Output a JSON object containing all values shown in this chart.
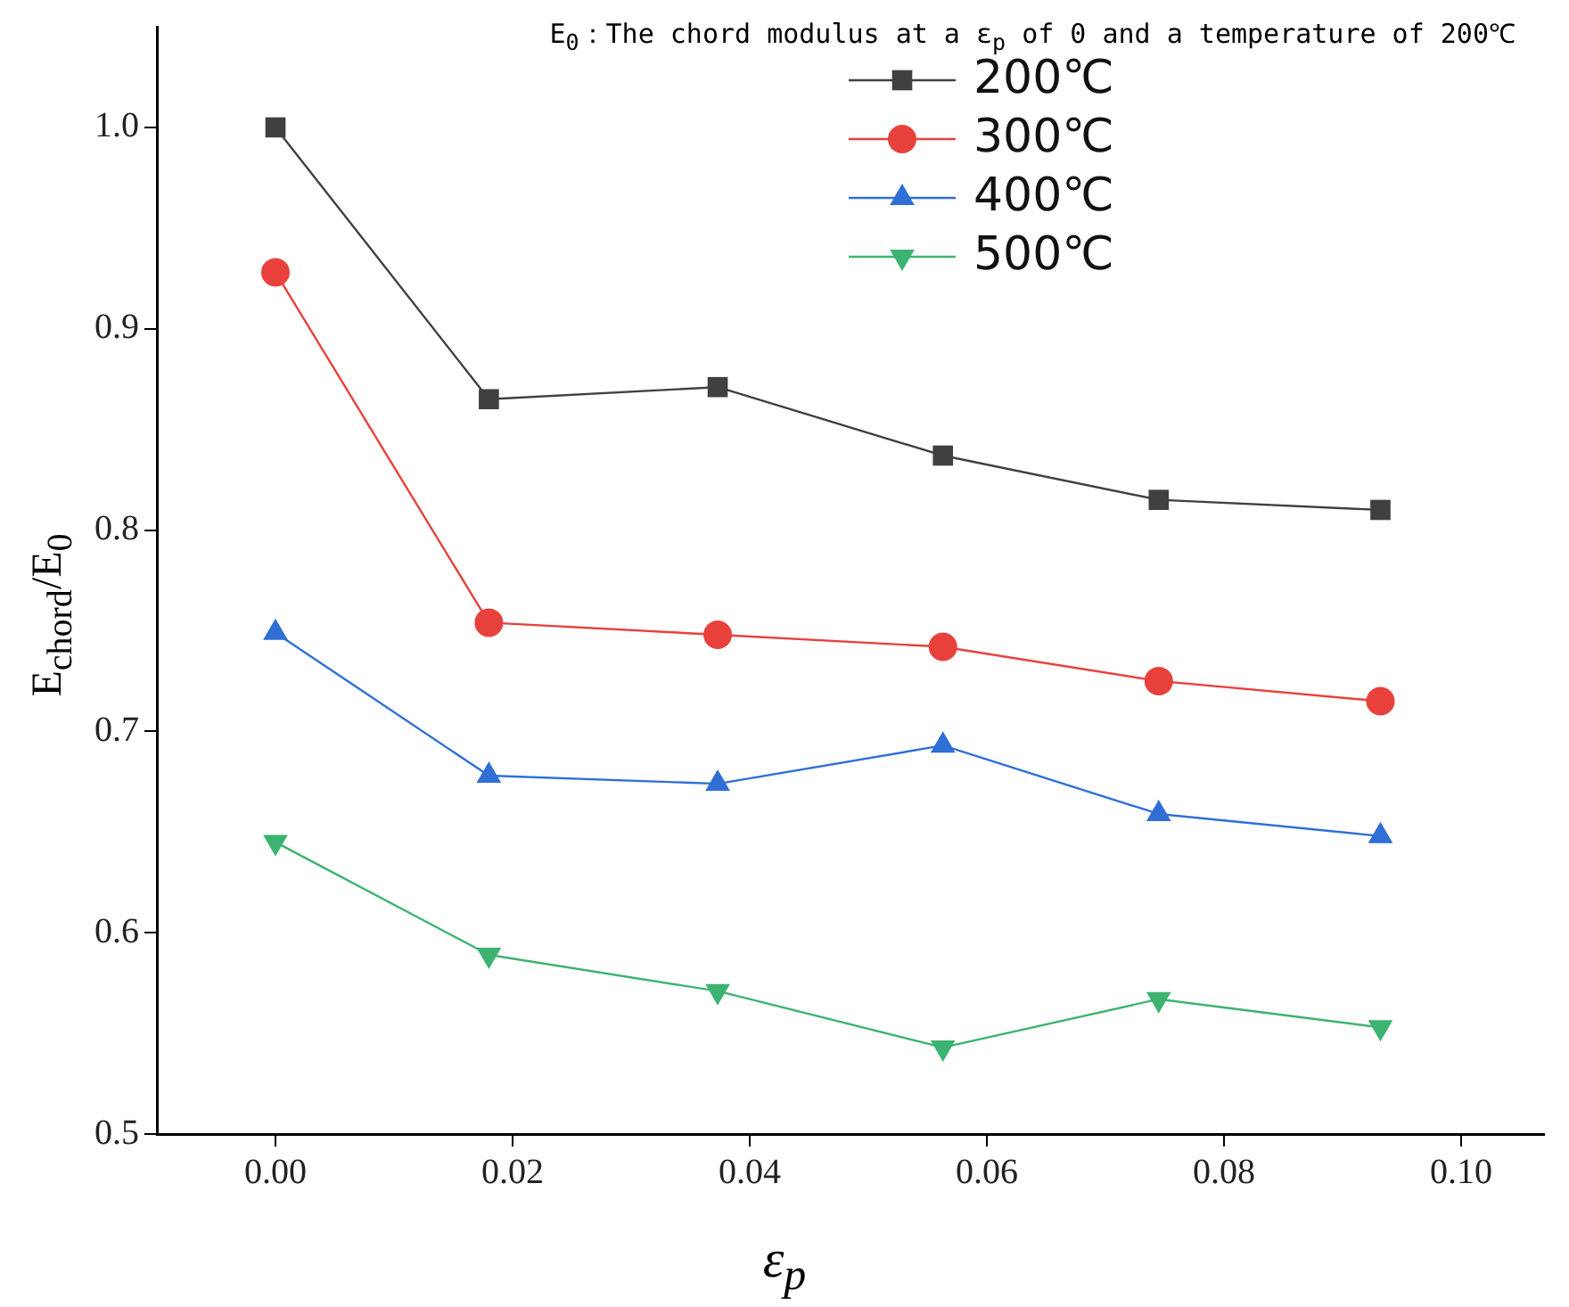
{
  "chart_data": {
    "type": "line",
    "xlabel": "ε$_{p}$",
    "ylabel": "E$_{chord}$/E$_{0}$",
    "annotations": [
      "E$_{0}$：The chord modulus at a ε$_{p}$ of 0 and a temperature of 200℃"
    ],
    "x": [
      0,
      0.018,
      0.0373,
      0.0563,
      0.0745,
      0.0932
    ],
    "series": [
      {
        "name": "200℃",
        "color": "#404040",
        "marker": "square",
        "values": [
          1.0,
          0.865,
          0.871,
          0.837,
          0.815,
          0.81
        ]
      },
      {
        "name": "300℃",
        "color": "#e8413c",
        "marker": "circle",
        "values": [
          0.928,
          0.754,
          0.748,
          0.742,
          0.725,
          0.715
        ]
      },
      {
        "name": "400℃",
        "color": "#2f6fd6",
        "marker": "triangle",
        "values": [
          0.749,
          0.678,
          0.674,
          0.693,
          0.659,
          0.648
        ]
      },
      {
        "name": "500℃",
        "color": "#3cb371",
        "marker": "triangle_down",
        "values": [
          0.645,
          0.589,
          0.571,
          0.543,
          0.567,
          0.553
        ]
      }
    ],
    "xlim": [
      -0.01,
      0.107
    ],
    "ylim": [
      0.5,
      1.05
    ],
    "xticks": [
      {
        "value": 0,
        "label": "0.00"
      },
      {
        "value": 0.02,
        "label": "0.02"
      },
      {
        "value": 0.04,
        "label": "0.04"
      },
      {
        "value": 0.06,
        "label": "0.06"
      },
      {
        "value": 0.08,
        "label": "0.08"
      },
      {
        "value": 0.1,
        "label": "0.10"
      }
    ],
    "yticks": [
      {
        "value": 0.5,
        "label": "0.5"
      },
      {
        "value": 0.6,
        "label": "0.6"
      },
      {
        "value": 0.7,
        "label": "0.7"
      },
      {
        "value": 0.8,
        "label": "0.8"
      },
      {
        "value": 0.9,
        "label": "0.9"
      },
      {
        "value": 1.0,
        "label": "1.0"
      }
    ],
    "grid": false,
    "legend": "top right",
    "line_style": "solid"
  }
}
